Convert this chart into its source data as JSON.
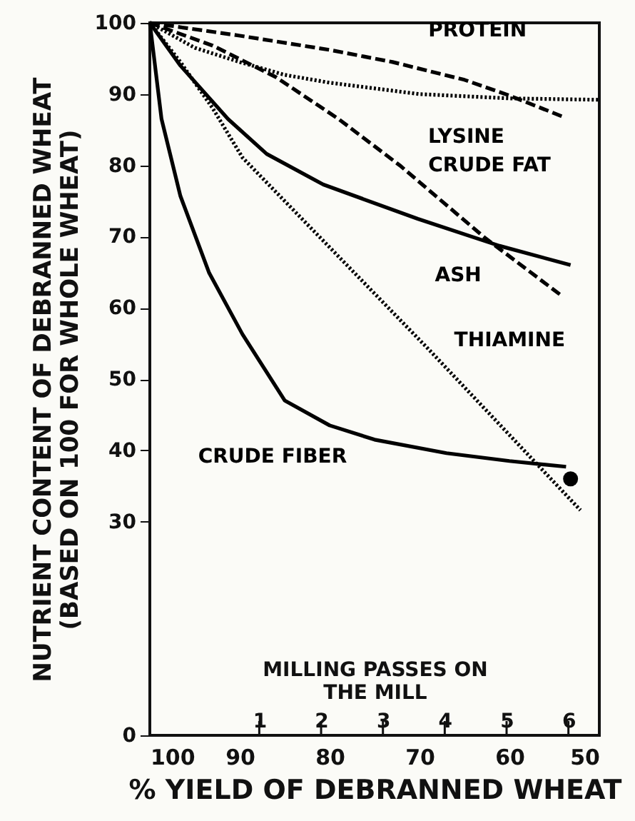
{
  "chart_data": {
    "type": "line",
    "xlabel": "% YIELD OF DEBRANNED WHEAT",
    "ylabel": "NUTRIENT CONTENT OF DEBRANNED WHEAT\n(BASED ON 100 FOR WHOLE WHEAT)",
    "x2label": "MILLING PASSES ON\nTHE MILL",
    "xlim": [
      100,
      50
    ],
    "xticks": [
      100,
      90,
      80,
      70,
      60,
      50
    ],
    "x2lim": [
      -0.77,
      6.5
    ],
    "x2ticks": [
      1,
      2,
      3,
      4,
      5,
      6
    ],
    "ylim": [
      0,
      100
    ],
    "yticks": [
      0,
      30,
      40,
      50,
      60,
      70,
      80,
      90,
      100
    ],
    "grid": false,
    "series": [
      {
        "name": "PROTEIN",
        "color": "#000000",
        "line_style": "dashed",
        "x": [
          100,
          90,
          80,
          73,
          65,
          60,
          54
        ],
        "values": [
          100,
          98.2,
          96.2,
          94.5,
          92,
          89.8,
          86.8
        ]
      },
      {
        "name": "LYSINE",
        "color": "#000000",
        "line_style": "dotted",
        "x": [
          100,
          95,
          90,
          85,
          80,
          70,
          60,
          50
        ],
        "values": [
          100,
          96.5,
          94.5,
          92.7,
          91.6,
          90,
          89.4,
          89.2
        ]
      },
      {
        "name": "CRUDE FAT",
        "color": "#000000",
        "line_style": "dashed",
        "x": [
          100,
          93,
          86,
          79,
          72.2,
          62.7,
          54.4
        ],
        "values": [
          100,
          96.8,
          92.4,
          86.5,
          80,
          69.8,
          61.9
        ]
      },
      {
        "name": "ASH",
        "color": "#000000",
        "line_style": "solid",
        "x": [
          100,
          96.6,
          91.3,
          87,
          80.7,
          70.2,
          61.1,
          53.2
        ],
        "values": [
          100,
          94,
          86.5,
          81.6,
          77.3,
          72.5,
          68.7,
          66
        ]
      },
      {
        "name": "THIAMINE",
        "color": "#000000",
        "line_style": "dotted",
        "x": [
          100,
          96.6,
          93,
          89.7,
          69,
          52.1
        ],
        "values": [
          100,
          94.5,
          88,
          81.1,
          54.2,
          31.6
        ]
      },
      {
        "name": "CRUDE FIBER",
        "color": "#000000",
        "line_style": "solid",
        "x": [
          100,
          98.7,
          96.6,
          93.4,
          89.7,
          85,
          80,
          75,
          67,
          60,
          53.7
        ],
        "values": [
          100,
          86.5,
          75.7,
          64.9,
          56.3,
          47,
          43.5,
          41.5,
          39.6,
          38.5,
          37.7
        ]
      },
      {
        "type": "scatter",
        "color": "#000000",
        "marker": "circle",
        "x": [
          53.2
        ],
        "values": [
          36
        ]
      }
    ]
  }
}
